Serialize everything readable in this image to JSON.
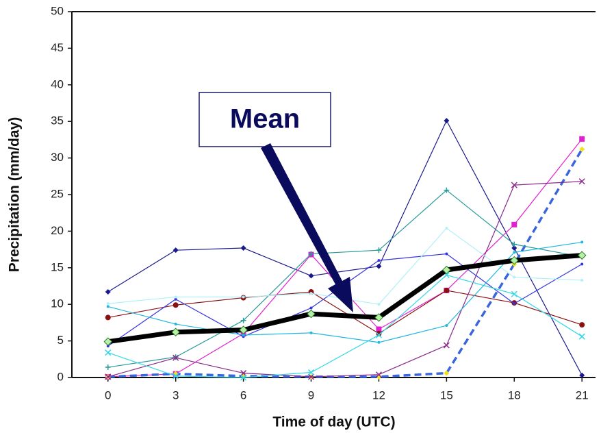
{
  "chart_data": {
    "type": "line",
    "x_label": "Time of day (UTC)",
    "y_label": "Precipitation (mm/day)",
    "annotation": "Mean",
    "x": [
      0,
      3,
      6,
      9,
      12,
      15,
      18,
      21
    ],
    "xlim": [
      -1.6,
      21.6
    ],
    "xticks": [
      0,
      3,
      6,
      9,
      12,
      15,
      18,
      21
    ],
    "ylim": [
      0,
      50
    ],
    "yticks": [
      0,
      5,
      10,
      15,
      20,
      25,
      30,
      35,
      40,
      45,
      50
    ],
    "grid": false,
    "series": [
      {
        "color": "#1a1a8c",
        "marker": "diamond",
        "values": [
          11.7,
          17.4,
          17.7,
          13.9,
          15.2,
          35.1,
          17.7,
          0.3
        ]
      },
      {
        "color": "#e020d0",
        "marker": "square",
        "values": [
          0.1,
          0.5,
          6.0,
          16.8,
          6.6,
          11.9,
          20.9,
          32.6
        ]
      },
      {
        "color": "#3a66dd",
        "marker": "diamond",
        "marker_color": "#f0e020",
        "dashed": true,
        "width": 3.5,
        "values": [
          0.1,
          0.5,
          0.2,
          0.1,
          0.1,
          0.6,
          15.5,
          31.2
        ]
      },
      {
        "color": "#8b1010",
        "marker": "circle",
        "values": [
          8.2,
          9.9,
          10.9,
          11.7,
          6.0,
          11.9,
          10.2,
          7.2
        ]
      },
      {
        "color": "#2a9a9a",
        "marker": "plus",
        "values": [
          1.4,
          2.8,
          7.8,
          16.9,
          17.4,
          25.6,
          18.2,
          16.5
        ]
      },
      {
        "color": "#8a2a8a",
        "marker": "x",
        "values": [
          0.1,
          2.7,
          0.6,
          0.1,
          0.4,
          4.4,
          26.3,
          26.8
        ]
      },
      {
        "color": "#3535e0",
        "marker": "dot",
        "values": [
          4.3,
          10.7,
          5.6,
          9.5,
          16.0,
          16.9,
          10.1,
          15.5
        ]
      },
      {
        "color": "#b0f0f8",
        "marker": "dot",
        "values": [
          10.1,
          11.0,
          11.0,
          11.5,
          10.0,
          20.4,
          13.7,
          13.3
        ]
      },
      {
        "color": "#30d8e8",
        "marker": "x",
        "values": [
          3.4,
          0.2,
          0.0,
          0.7,
          5.8,
          14.0,
          11.4,
          5.6
        ]
      },
      {
        "color": "#20b8e0",
        "marker": "dot",
        "values": [
          9.7,
          7.3,
          5.8,
          6.1,
          4.8,
          7.1,
          17.1,
          18.5
        ]
      },
      {
        "color": "#000000",
        "marker": "diamond",
        "marker_color": "#b8f0a8",
        "width": 7,
        "values": [
          4.9,
          6.2,
          6.5,
          8.7,
          8.2,
          14.7,
          16.0,
          16.7
        ]
      }
    ]
  }
}
